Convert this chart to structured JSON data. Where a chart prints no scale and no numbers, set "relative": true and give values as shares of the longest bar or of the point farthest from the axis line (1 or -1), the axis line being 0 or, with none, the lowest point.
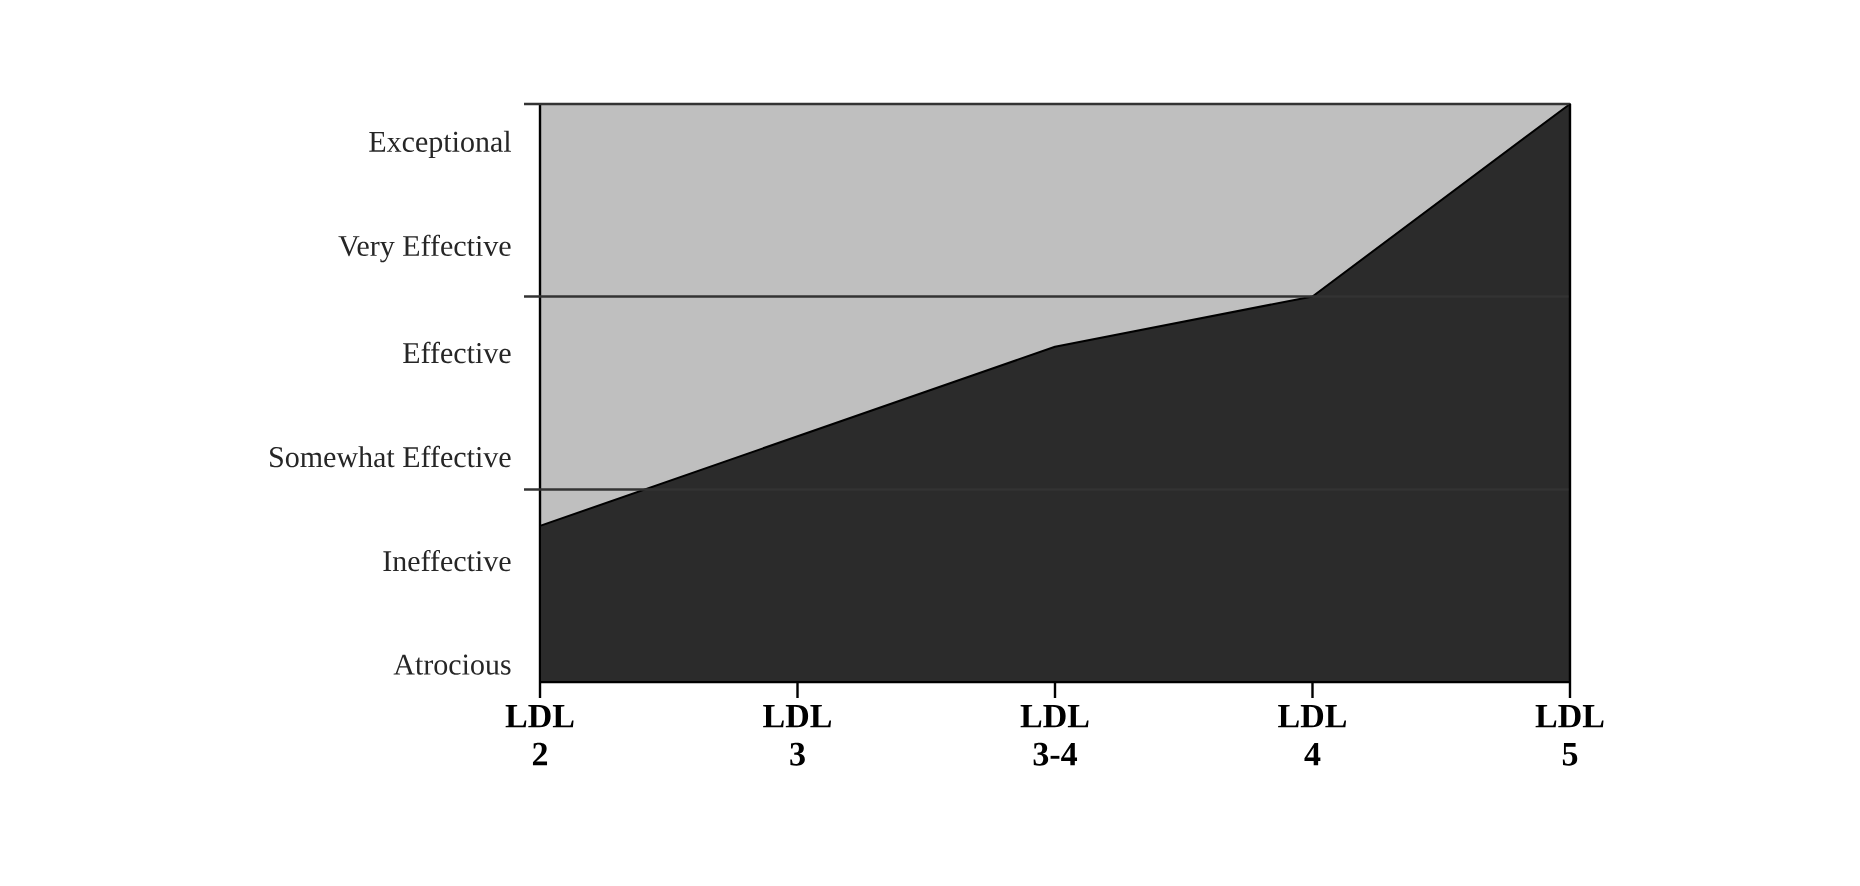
{
  "chart_data": {
    "type": "area",
    "relative": true,
    "categories": [
      "LDL 2",
      "LDL 3",
      "LDL 3-4",
      "LDL 4",
      "LDL 5"
    ],
    "values": [
      0.27,
      0.425,
      0.58,
      0.667,
      1.0
    ],
    "color": "#2b2b2b",
    "annotations": [
      "Atrocious",
      "Ineffective",
      "Somewhat Effective",
      "Effective",
      "Very Effective",
      "Exceptional"
    ],
    "ref_lines": [
      {
        "axis": "y",
        "value": 0.333,
        "color": "#333333"
      },
      {
        "axis": "y",
        "value": 0.667,
        "color": "#333333"
      },
      {
        "axis": "y",
        "value": 1.0,
        "color": "#333333"
      }
    ]
  }
}
